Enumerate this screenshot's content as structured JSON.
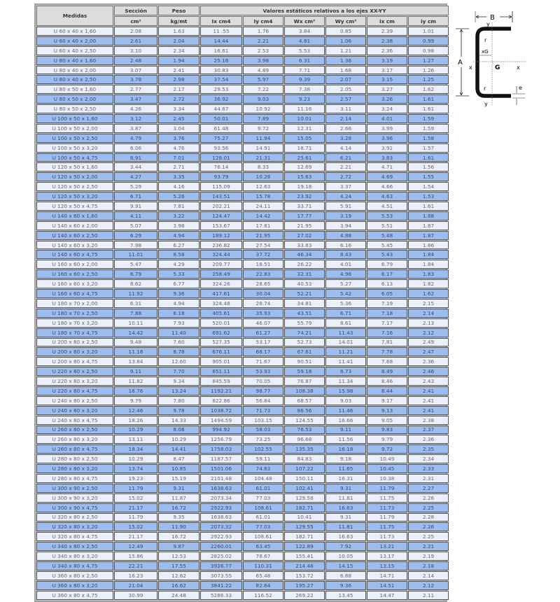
{
  "table": {
    "header_medidas": "Medidas",
    "header_seccion": "Sección",
    "header_peso": "Peso",
    "header_valores": "Valores estáticos relativos a los ejes XX-YY",
    "units": [
      "cm²",
      "kg/mt",
      "Ix cm4",
      "Iy cm4",
      "Wx cm³",
      "Wy cm³",
      "ix cm",
      "iy cm"
    ],
    "rows": [
      [
        "U 60 x 40 x 1,60",
        "2.08",
        "1.63",
        "11 .55",
        "1.76",
        "3.84",
        "0.85",
        "2.39",
        "1.01"
      ],
      [
        "U 60 x 40 x 2,00",
        "2.61",
        "2.04",
        "14.44",
        "2.21",
        "4.81",
        "1.06",
        "2.38",
        "0.99"
      ],
      [
        "U 60 x 40 x 2,50",
        "3.10",
        "2.34",
        "16.61",
        "2.53",
        "5.53",
        "1.21",
        "2.36",
        "0.98"
      ],
      [
        "U 80 x 40 x 1,60",
        "2.48",
        "1.94",
        "25.18",
        "3.98",
        "6.31",
        "1.36",
        "3.19",
        "1.27"
      ],
      [
        "U 80 x 40 x 2,00",
        "3.07",
        "2.41",
        "30.83",
        "4.89",
        "7.71",
        "1.68",
        "3.17",
        "1.26"
      ],
      [
        "U 80 x 40 x 2,50",
        "3.78",
        "2.98",
        "37.54",
        "5.97",
        "9.39",
        "2.07",
        "3.15",
        "1.25"
      ],
      [
        "U 80 x 50 x 1,60",
        "2.77",
        "2.17",
        "29.53",
        "7.22",
        "7.38",
        "2.05",
        "3.27",
        "1.62"
      ],
      [
        "U 80 x 50 x 2,00",
        "3.47",
        "2.72",
        "36.92",
        "9.03",
        "9.23",
        "2.57",
        "3.26",
        "1.61"
      ],
      [
        "U 80 x 50 x 2,50",
        "4.26",
        "3.34",
        "44.67",
        "10.92",
        "11.16",
        "3.11",
        "3.24",
        "1.61"
      ],
      [
        "U 100 x 50 x 1,60",
        "3.12",
        "2.45",
        "50.01",
        "7.89",
        "10.01",
        "2.14",
        "4.01",
        "1.59"
      ],
      [
        "U 100 x 50 x 2,00",
        "3.87",
        "3.04",
        "61.48",
        "9.72",
        "12.31",
        "2.66",
        "3.99",
        "1.59"
      ],
      [
        "U 100 x 50 x 2,50",
        "4.79",
        "3.76",
        "75.27",
        "11.94",
        "15.05",
        "3.28",
        "3.96",
        "1.58"
      ],
      [
        "U 100 x 50 x 3,20",
        "6.06",
        "4.76",
        "93.56",
        "14.91",
        "18.71",
        "4.14",
        "3.91",
        "1.57"
      ],
      [
        "U 100 x 50 x 4,75",
        "8.91",
        "7.01",
        "128.01",
        "21.31",
        "25.61",
        "6.21",
        "3.83",
        "1.61"
      ],
      [
        "U 120 x 50 x 1,60",
        "3.44",
        "2.71",
        "76.14",
        "8.33",
        "12.69",
        "2.21",
        "4.71",
        "1.56"
      ],
      [
        "U 120 x 50 x 2,00",
        "4.27",
        "3.35",
        "93.79",
        "10.28",
        "15.63",
        "2.72",
        "4.69",
        "1.55"
      ],
      [
        "U 120 x 50 x 2,50",
        "5.29",
        "4.16",
        "115.09",
        "12.63",
        "19.18",
        "3.37",
        "4.66",
        "1.54"
      ],
      [
        "U 120 x 50 x 3,20",
        "6.71",
        "5.26",
        "143.51",
        "15.78",
        "23.92",
        "4.24",
        "4.63",
        "1.53"
      ],
      [
        "U 120 x 50 x 4,75",
        "9.91",
        "7.81",
        "202.21",
        "24.11",
        "33.71",
        "5.91",
        "4.51",
        "1.61"
      ],
      [
        "U 140 x 60 x 1,60",
        "4.11",
        "3.22",
        "124.47",
        "14.42",
        "17.77",
        "3.19",
        "5.53",
        "1.88"
      ],
      [
        "U 140 x 60 x 2,00",
        "5.07",
        "3.98",
        "153.67",
        "17.81",
        "21.95",
        "3.94",
        "5.51",
        "1.87"
      ],
      [
        "U 140 x 60 x 2,50",
        "6.29",
        "4.94",
        "189.12",
        "21.95",
        "27.02",
        "4.88",
        "5.48",
        "1.87"
      ],
      [
        "U 140 x 60 x 3,20",
        "7.98",
        "6.27",
        "236.82",
        "27.54",
        "33.83",
        "6.16",
        "5.45",
        "1.86"
      ],
      [
        "U 140 x 60 x 4,75",
        "11.01",
        "8.58",
        "324.44",
        "37.72",
        "46.34",
        "8.43",
        "5.43",
        "1.84"
      ],
      [
        "U 160 x 60 x 2,00",
        "5.47",
        "4.29",
        "209.77",
        "18.51",
        "26.22",
        "4.01",
        "6.79",
        "1.84"
      ],
      [
        "U 160 x 60 x 2,50",
        "6.79",
        "5.33",
        "258.49",
        "22.83",
        "32.31",
        "4.96",
        "6.17",
        "1.83"
      ],
      [
        "U 160 x 60 x 3,20",
        "8.62",
        "6.77",
        "324.26",
        "28.65",
        "40.53",
        "5.27",
        "6.13",
        "1.82"
      ],
      [
        "U 160 x 60 x 4,75",
        "11.92",
        "9.36",
        "417.61",
        "30.04",
        "52.21",
        "5.42",
        "6.05",
        "1.62"
      ],
      [
        "U 180 x 70 x 2,00",
        "6.31",
        "4.94",
        "324.48",
        "28.74",
        "34.81",
        "5.36",
        "7.19",
        "2.15"
      ],
      [
        "U 180 x 70 x 2,50",
        "7.88",
        "6.18",
        "405.61",
        "35.93",
        "43.51",
        "6.71",
        "7.18",
        "2.14"
      ],
      [
        "U 180 x 70 x 3,20",
        "10.11",
        "7.93",
        "520.01",
        "46.07",
        "55.79",
        "8.61",
        "7.17",
        "2.13"
      ],
      [
        "U 180 x 70 x 4,75",
        "14.42",
        "11.40",
        "691.62",
        "61.27",
        "74.21",
        "11.43",
        "7.16",
        "2.12"
      ],
      [
        "U 200 x 80 x 2,50",
        "9.48",
        "7.60",
        "527.35",
        "53.17",
        "52.73",
        "14.01",
        "7.81",
        "2.49"
      ],
      [
        "U 200 x 80 x 3,20",
        "11.18",
        "8.78",
        "676.11",
        "68.17",
        "67.61",
        "11.21",
        "7.78",
        "2.47"
      ],
      [
        "U 200 x 80 x 4,75",
        "13.84",
        "12.60",
        "905.01",
        "71.67",
        "90.51",
        "11.41",
        "7.68",
        "2.36"
      ],
      [
        "U 220 x 80 x 2,50",
        "9.11",
        "7.70",
        "651.11",
        "53.93",
        "59.18",
        "8.73",
        "8.49",
        "2.46"
      ],
      [
        "U 220 x 80 x 3,20",
        "11.82",
        "9.34",
        "845.59",
        "70.05",
        "76.87",
        "11.34",
        "8.46",
        "2.43"
      ],
      [
        "U 220 x 80 x 4,75",
        "16.76",
        "13.24",
        "1192.21",
        "98.77",
        "108.38",
        "15.98",
        "8.44",
        "2.41"
      ],
      [
        "U 240 x 80 x 2,50",
        "9.79",
        "7.80",
        "822.86",
        "56.84",
        "68.57",
        "9.03",
        "9.17",
        "2.41"
      ],
      [
        "U 240 x 80 x 3,20",
        "12.46",
        "9.78",
        "1038.72",
        "71.73",
        "86.56",
        "11.46",
        "9.13",
        "2.41"
      ],
      [
        "U 240 x 80 x 4,75",
        "18.26",
        "14.33",
        "1494.59",
        "103.15",
        "124.55",
        "16.66",
        "9.05",
        "2.38"
      ],
      [
        "U 260 x 80 x 2,50",
        "10.29",
        "8.08",
        "994.92",
        "58.03",
        "76.53",
        "9.11",
        "9.83",
        "2.37"
      ],
      [
        "U 260 x 80 x 3,20",
        "13.11",
        "10.29",
        "1256.79",
        "73.25",
        "96.68",
        "11.56",
        "9.79",
        "2.36"
      ],
      [
        "U 260 x 80 x 4,75",
        "18.34",
        "14.41",
        "1758.03",
        "102.55",
        "135.35",
        "16.18",
        "9.72",
        "2.35"
      ],
      [
        "U 280 x 80 x 2,50",
        "10.29",
        "8.47",
        "1187.57",
        "59.11",
        "84.83",
        "9.18",
        "10.49",
        "2.34"
      ],
      [
        "U 280 x 80 x 3,20",
        "13.74",
        "10.85",
        "1501.06",
        "74.63",
        "107.22",
        "11.65",
        "10.45",
        "2.33"
      ],
      [
        "U 280 x 80 x 4,75",
        "19.23",
        "15.19",
        "2101.48",
        "104.48",
        "150.11",
        "16.31",
        "10.38",
        "2.31"
      ],
      [
        "U 300 x 90 x 2,50",
        "11.79",
        "9.31",
        "1638.63",
        "61.01",
        "102.41",
        "9.31",
        "11.79",
        "2.27"
      ],
      [
        "U 300 x 90 x 3,20",
        "15.02",
        "11.87",
        "2073.34",
        "77.03",
        "129.58",
        "11.81",
        "11.75",
        "2.26"
      ],
      [
        "U 300 x 90 x 4,75",
        "21.17",
        "16.72",
        "2922.93",
        "108.61",
        "182.71",
        "16.63",
        "11.73",
        "2.25"
      ],
      [
        "U 320 x 80 x 2,50",
        "11.79",
        "9.35",
        "1638.63",
        "61.01",
        "10.41",
        "9.31",
        "11.79",
        "2.28"
      ],
      [
        "U 320 x 80 x 3,20",
        "15.02",
        "11.90",
        "2073.32",
        "77.03",
        "129.55",
        "11.81",
        "11.75",
        "2.26"
      ],
      [
        "U 320 x 80 x 4,75",
        "21.17",
        "16.72",
        "2922.93",
        "108.61",
        "182.71",
        "16.63",
        "11.73",
        "2.25"
      ],
      [
        "U 340 x 80 x 2,50",
        "12.49",
        "9.87",
        "2260.01",
        "63.45",
        "122.89",
        "7.92",
        "13.21",
        "2.21"
      ],
      [
        "U 340 x 80 x 3,20",
        "15.86",
        "12.53",
        "2825.02",
        "78.67",
        "155.41",
        "10.05",
        "13.17",
        "2.19"
      ],
      [
        "U 340 x 80 x 4,75",
        "22.21",
        "17.55",
        "3926.77",
        "110.31",
        "214.46",
        "14.15",
        "13.15",
        "2.18"
      ],
      [
        "U 360 x 80 x 2,50",
        "16.23",
        "12.82",
        "3073.55",
        "65.48",
        "153.72",
        "6.88",
        "14.71",
        "2.14"
      ],
      [
        "U 360 x 80 x 3,20",
        "21.04",
        "16.62",
        "3841.22",
        "82.64",
        "195.27",
        "9.36",
        "14.51",
        "2.12"
      ],
      [
        "U 360 x 80 x 4,75",
        "30.99",
        "24.48",
        "5286.33",
        "116.52",
        "269.22",
        "13.45",
        "14.47",
        "2.11"
      ]
    ]
  },
  "diagram": {
    "labels": {
      "B": "B",
      "A": "A",
      "y_top": "y",
      "y_bottom": "y",
      "x_left": "x",
      "x_right": "x",
      "G": "G",
      "xG": "xG",
      "r_top": "r",
      "r_bottom": "r",
      "e": "e"
    }
  },
  "colors": {
    "row_light": "#e9f0fb",
    "row_dark": "#9dbcf0",
    "header": "#dcdcdc"
  }
}
